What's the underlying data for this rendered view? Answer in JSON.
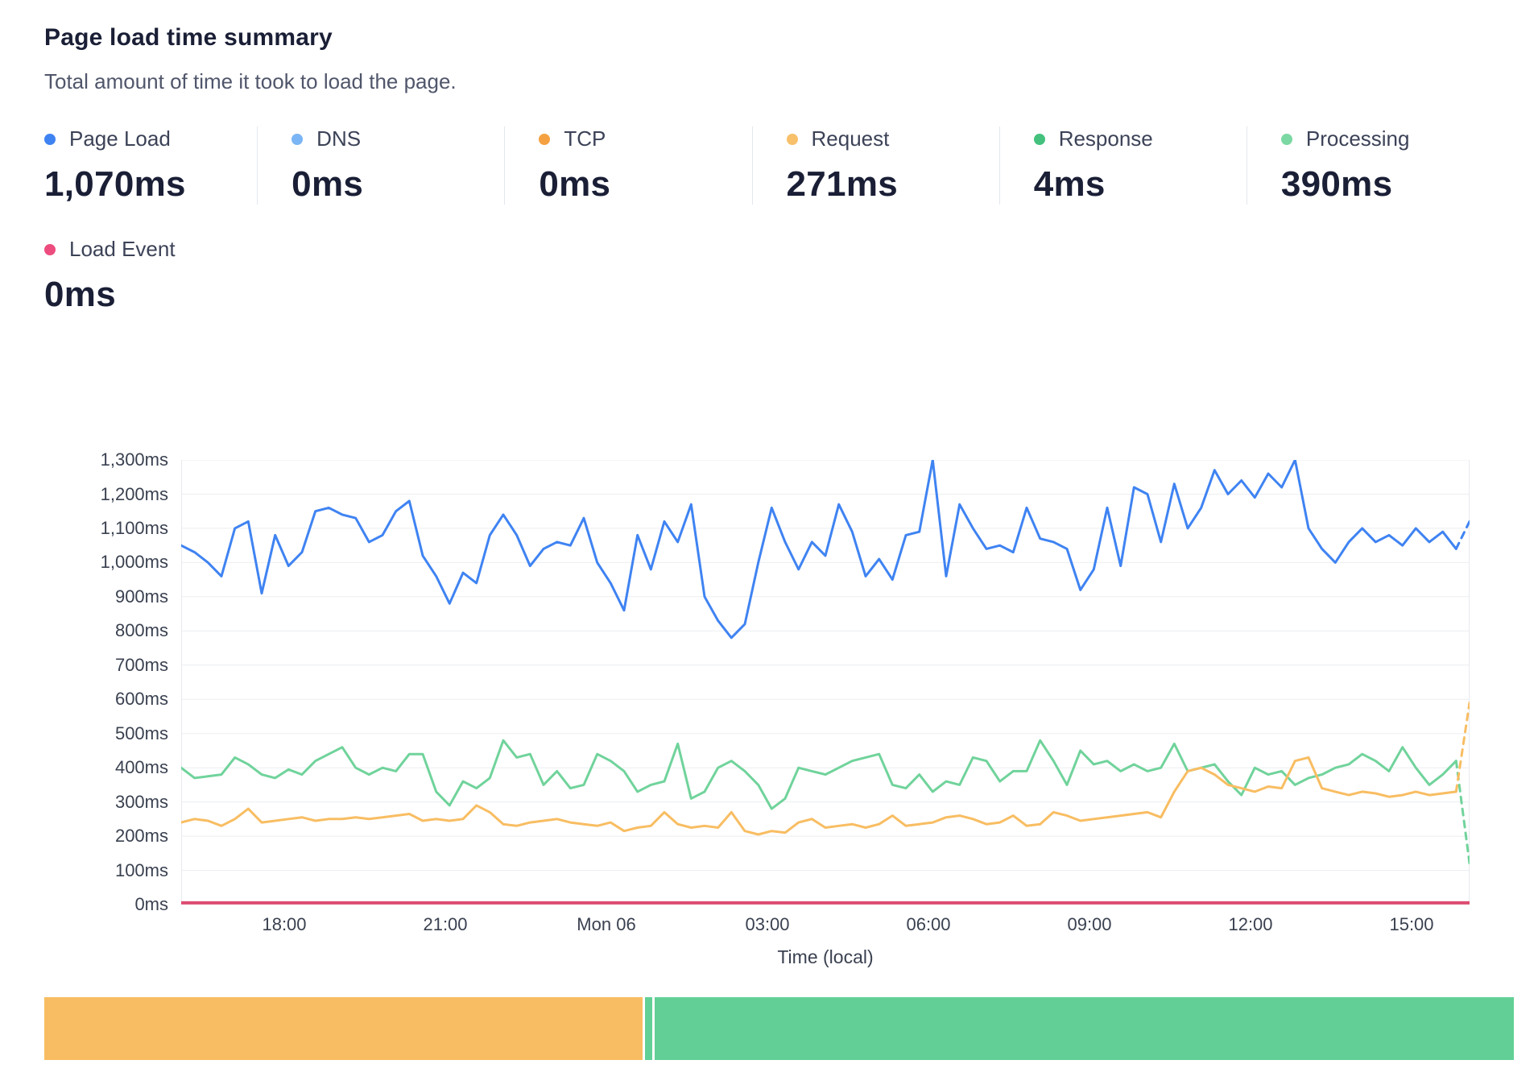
{
  "header": {
    "title": "Page load time summary",
    "subtitle": "Total amount of time it took to load the page."
  },
  "metrics": [
    {
      "label": "Page Load",
      "value": "1,070ms",
      "color": "#3f83f2"
    },
    {
      "label": "DNS",
      "value": "0ms",
      "color": "#7ab5f5"
    },
    {
      "label": "TCP",
      "value": "0ms",
      "color": "#f5a142"
    },
    {
      "label": "Request",
      "value": "271ms",
      "color": "#f8c univ06a"
    },
    {
      "label": "Response",
      "value": "4ms",
      "color": "#43c17d"
    },
    {
      "label": "Processing",
      "value": "390ms",
      "color": "#7bd8a2"
    }
  ],
  "metrics_row2": [
    {
      "label": "Load Event",
      "value": "0ms",
      "color": "#ed4c7f"
    }
  ],
  "chart_data": {
    "type": "line",
    "title": "Page load time summary",
    "xlabel": "Time (local)",
    "ylabel": "",
    "grid": true,
    "legend_position": "top-metrics-row",
    "ylim": [
      0,
      1300
    ],
    "y_tick_step": 100,
    "y_ticks": [
      "0ms",
      "100ms",
      "200ms",
      "300ms",
      "400ms",
      "500ms",
      "600ms",
      "700ms",
      "800ms",
      "900ms",
      "1,000ms",
      "1,100ms",
      "1,200ms",
      "1,300ms"
    ],
    "x_ticks": [
      {
        "label": "18:00",
        "pos": 0.08
      },
      {
        "label": "21:00",
        "pos": 0.205
      },
      {
        "label": "Mon 06",
        "pos": 0.33
      },
      {
        "label": "03:00",
        "pos": 0.455
      },
      {
        "label": "06:00",
        "pos": 0.58
      },
      {
        "label": "09:00",
        "pos": 0.705
      },
      {
        "label": "12:00",
        "pos": 0.83
      },
      {
        "label": "15:00",
        "pos": 0.955
      }
    ],
    "series": [
      {
        "name": "Page Load",
        "color": "#3f83f2",
        "width": 3,
        "dashed_from": 95,
        "values": [
          1050,
          1030,
          1000,
          960,
          1100,
          1120,
          910,
          1080,
          990,
          1030,
          1150,
          1160,
          1140,
          1130,
          1060,
          1080,
          1150,
          1180,
          1020,
          960,
          880,
          970,
          940,
          1080,
          1140,
          1080,
          990,
          1040,
          1060,
          1050,
          1130,
          1000,
          940,
          860,
          1080,
          980,
          1120,
          1060,
          1170,
          900,
          830,
          780,
          820,
          1000,
          1160,
          1060,
          980,
          1060,
          1020,
          1170,
          1090,
          960,
          1010,
          950,
          1080,
          1090,
          1300,
          960,
          1170,
          1100,
          1040,
          1050,
          1030,
          1160,
          1070,
          1060,
          1040,
          920,
          980,
          1160,
          990,
          1220,
          1200,
          1060,
          1230,
          1100,
          1160,
          1270,
          1200,
          1240,
          1190,
          1260,
          1220,
          1300,
          1100,
          1040,
          1000,
          1060,
          1100,
          1060,
          1080,
          1050,
          1100,
          1060,
          1090,
          1040,
          1120
        ]
      },
      {
        "name": "Processing",
        "color": "#70d39b",
        "width": 3,
        "dashed_from": 95,
        "values": [
          400,
          370,
          375,
          380,
          430,
          410,
          380,
          370,
          395,
          380,
          420,
          440,
          460,
          400,
          380,
          400,
          390,
          440,
          440,
          330,
          290,
          360,
          340,
          370,
          480,
          430,
          440,
          350,
          390,
          340,
          350,
          440,
          420,
          390,
          330,
          350,
          360,
          470,
          310,
          330,
          400,
          420,
          390,
          350,
          280,
          310,
          400,
          390,
          380,
          400,
          420,
          430,
          440,
          350,
          340,
          380,
          330,
          360,
          350,
          430,
          420,
          360,
          390,
          390,
          480,
          420,
          350,
          450,
          410,
          420,
          390,
          410,
          390,
          400,
          470,
          390,
          400,
          410,
          360,
          320,
          400,
          380,
          390,
          350,
          370,
          380,
          400,
          410,
          440,
          420,
          390,
          460,
          400,
          350,
          380,
          420,
          120
        ]
      },
      {
        "name": "Request",
        "color": "#f8bd62",
        "width": 3,
        "dashed_from": 95,
        "values": [
          240,
          250,
          245,
          230,
          250,
          280,
          240,
          245,
          250,
          255,
          245,
          250,
          250,
          255,
          250,
          255,
          260,
          265,
          245,
          250,
          245,
          250,
          290,
          270,
          235,
          230,
          240,
          245,
          250,
          240,
          235,
          230,
          240,
          215,
          225,
          230,
          270,
          235,
          225,
          230,
          225,
          270,
          215,
          205,
          215,
          210,
          240,
          250,
          225,
          230,
          235,
          225,
          235,
          260,
          230,
          235,
          240,
          255,
          260,
          250,
          235,
          240,
          260,
          230,
          235,
          270,
          260,
          245,
          250,
          255,
          260,
          265,
          270,
          255,
          330,
          390,
          400,
          380,
          350,
          340,
          330,
          345,
          340,
          420,
          430,
          340,
          330,
          320,
          330,
          325,
          315,
          320,
          330,
          320,
          325,
          330,
          590
        ]
      },
      {
        "name": "Load Event",
        "color": "#dd4d72",
        "width": 4,
        "constant": 5
      }
    ]
  },
  "bottom_bar": {
    "segments": [
      {
        "name": "timeline-segment-orange",
        "color": "#f8bd62",
        "width_pct": 40.7,
        "interactable": true
      },
      {
        "name": "timeline-segment-gap-1",
        "color": "#ffffff",
        "width_pct": 0.2,
        "interactable": false
      },
      {
        "name": "timeline-segment-green-sliver",
        "color": "#62d096",
        "width_pct": 0.45,
        "interactable": true
      },
      {
        "name": "timeline-segment-gap-2",
        "color": "#ffffff",
        "width_pct": 0.2,
        "interactable": false
      },
      {
        "name": "timeline-segment-green",
        "color": "#62d096",
        "width_pct": 58.45,
        "interactable": true
      }
    ]
  }
}
